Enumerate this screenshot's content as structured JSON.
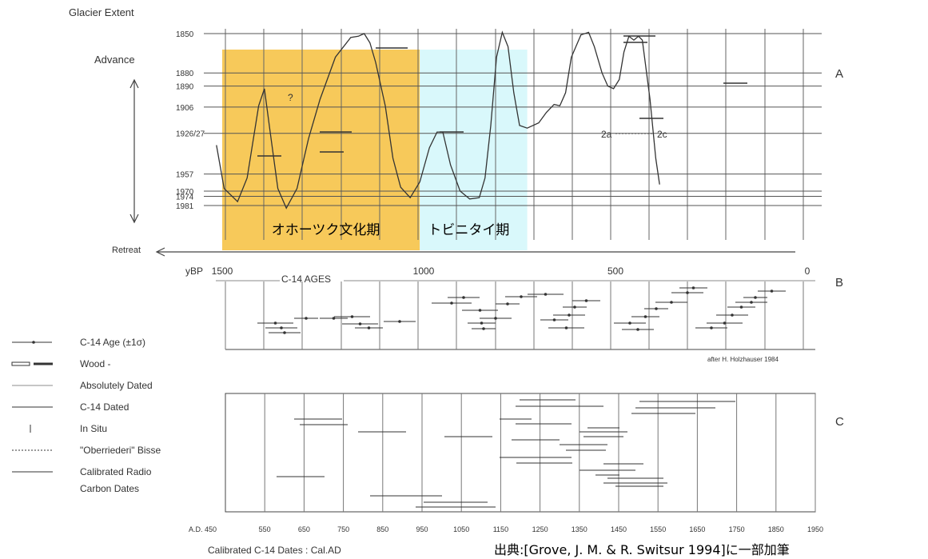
{
  "chart_data": {
    "type": "line",
    "panel_a": {
      "title": "Glacier Extent",
      "advance_label": "Advance",
      "retreat_label": "Retreat",
      "panel_label": "A",
      "year_marks": [
        "1850",
        "1880",
        "1890",
        "1906",
        "1926/27",
        "1957",
        "1970",
        "1974",
        "1981"
      ],
      "x_axis_name": "yBP",
      "x_ticks": [
        "1500",
        "1000",
        "500",
        "0"
      ],
      "xlim": [
        1500,
        0
      ],
      "sub_axis_label": "C-14 AGES",
      "highlight_periods": [
        {
          "label": "オホーツク文化期",
          "color": "#f7c95a",
          "from_bp": 1500,
          "to_bp": 1010
        },
        {
          "label": "トビニタイ期",
          "color": "#d9f8fb",
          "from_bp": 1010,
          "to_bp": 730
        }
      ],
      "curve_points": [
        [
          1540,
          1935
        ],
        [
          1520,
          1968
        ],
        [
          1485,
          1978
        ],
        [
          1460,
          1960
        ],
        [
          1430,
          1905
        ],
        [
          1415,
          1892
        ],
        [
          1400,
          1925
        ],
        [
          1380,
          1968
        ],
        [
          1358,
          1983
        ],
        [
          1330,
          1968
        ],
        [
          1300,
          1930
        ],
        [
          1270,
          1900
        ],
        [
          1230,
          1868
        ],
        [
          1190,
          1853
        ],
        [
          1170,
          1852
        ],
        [
          1155,
          1850
        ],
        [
          1140,
          1857
        ],
        [
          1125,
          1872
        ],
        [
          1100,
          1905
        ],
        [
          1080,
          1945
        ],
        [
          1060,
          1967
        ],
        [
          1035,
          1975
        ],
        [
          1010,
          1963
        ],
        [
          985,
          1937
        ],
        [
          965,
          1925
        ],
        [
          950,
          1925
        ],
        [
          930,
          1950
        ],
        [
          905,
          1970
        ],
        [
          880,
          1976
        ],
        [
          855,
          1975
        ],
        [
          840,
          1960
        ],
        [
          825,
          1920
        ],
        [
          810,
          1868
        ],
        [
          795,
          1849
        ],
        [
          780,
          1860
        ],
        [
          765,
          1895
        ],
        [
          750,
          1920
        ],
        [
          730,
          1922
        ],
        [
          700,
          1918
        ],
        [
          680,
          1910
        ],
        [
          660,
          1904
        ],
        [
          645,
          1905
        ],
        [
          630,
          1895
        ],
        [
          615,
          1868
        ],
        [
          590,
          1851
        ],
        [
          570,
          1849
        ],
        [
          555,
          1860
        ],
        [
          535,
          1880
        ],
        [
          520,
          1890
        ],
        [
          505,
          1892
        ],
        [
          490,
          1885
        ],
        [
          478,
          1864
        ],
        [
          465,
          1852
        ],
        [
          452,
          1855
        ],
        [
          440,
          1852
        ],
        [
          430,
          1855
        ],
        [
          410,
          1900
        ],
        [
          395,
          1945
        ],
        [
          385,
          1965
        ]
      ]
    },
    "panel_b": {
      "panel_label": "B",
      "credit": "after H. Holzhauser 1984"
    },
    "panel_c": {
      "panel_label": "C",
      "x_ticks": [
        "A.D. 450",
        "550",
        "650",
        "750",
        "850",
        "950",
        "1050",
        "1150",
        "1250",
        "1350",
        "1450",
        "1550",
        "1650",
        "1750",
        "1850",
        "1950"
      ],
      "xlim": [
        450,
        1950
      ],
      "x_axis_title": "Calibrated C-14 Dates : Cal.AD"
    },
    "legend": [
      {
        "label": "C-14 Age (±1σ)",
        "icon": "dot-bar"
      },
      {
        "label": "Wood -",
        "icon": "hollow-solid-bars"
      },
      {
        "label": "Absolutely Dated",
        "icon": "thin-line"
      },
      {
        "label": "C-14 Dated",
        "icon": "line"
      },
      {
        "label": "In Situ",
        "icon": "tick"
      },
      {
        "label": "\"Oberriederi\" Bisse",
        "icon": "dotted-line"
      },
      {
        "label": "Calibrated Radio",
        "icon": "line"
      },
      {
        "label": "Carbon Dates",
        "icon": "none"
      }
    ]
  },
  "source_note": "出典:[Grove, J. M. & R. Switsur 1994]に一部加筆"
}
